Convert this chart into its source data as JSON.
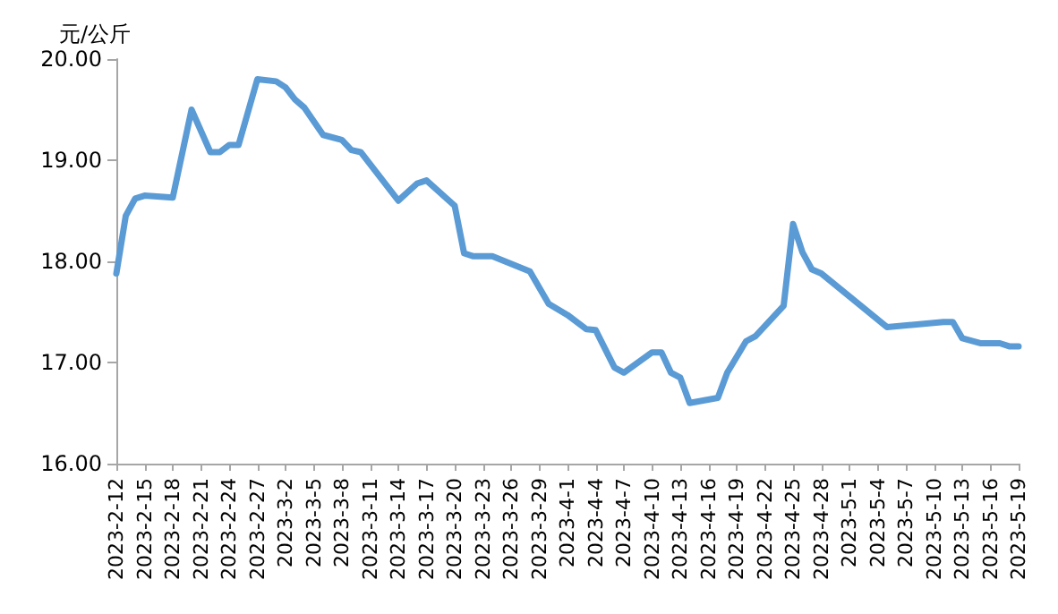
{
  "chart_data": {
    "type": "line",
    "ylabel": "元/公斤",
    "x": [
      "2023-02-12",
      "2023-02-13",
      "2023-02-14",
      "2023-02-15",
      "2023-02-18",
      "2023-02-20",
      "2023-02-22",
      "2023-02-23",
      "2023-02-24",
      "2023-02-25",
      "2023-02-27",
      "2023-03-01",
      "2023-03-02",
      "2023-03-03",
      "2023-03-04",
      "2023-03-06",
      "2023-03-08",
      "2023-03-09",
      "2023-03-10",
      "2023-03-14",
      "2023-03-16",
      "2023-03-17",
      "2023-03-20",
      "2023-03-21",
      "2023-03-22",
      "2023-03-24",
      "2023-03-28",
      "2023-03-30",
      "2023-04-01",
      "2023-04-03",
      "2023-04-04",
      "2023-04-06",
      "2023-04-07",
      "2023-04-10",
      "2023-04-11",
      "2023-04-12",
      "2023-04-13",
      "2023-04-14",
      "2023-04-17",
      "2023-04-18",
      "2023-04-20",
      "2023-04-21",
      "2023-04-24",
      "2023-04-25",
      "2023-04-26",
      "2023-04-27",
      "2023-04-28",
      "2023-05-05",
      "2023-05-11",
      "2023-05-12",
      "2023-05-13",
      "2023-05-15",
      "2023-05-17",
      "2023-05-18",
      "2023-05-19"
    ],
    "series": [
      {
        "color": "#5b9bd5",
        "values": [
          17.88,
          18.45,
          18.62,
          18.65,
          18.63,
          19.5,
          19.08,
          19.08,
          19.15,
          19.15,
          19.8,
          19.78,
          19.72,
          19.6,
          19.52,
          19.25,
          19.2,
          19.1,
          19.08,
          18.6,
          18.77,
          18.8,
          18.55,
          18.08,
          18.05,
          18.05,
          17.9,
          17.58,
          17.47,
          17.33,
          17.32,
          16.95,
          16.9,
          17.1,
          17.1,
          16.9,
          16.85,
          16.6,
          16.65,
          16.9,
          17.21,
          17.26,
          17.56,
          18.37,
          18.09,
          17.92,
          17.88,
          17.35,
          17.4,
          17.4,
          17.24,
          17.19,
          17.19,
          17.16,
          17.16
        ]
      }
    ],
    "xlim": [
      "2023-02-12",
      "2023-05-19"
    ],
    "xticks": [
      {
        "value": "2023-02-12",
        "label": "2023-2-12"
      },
      {
        "value": "2023-02-15",
        "label": "2023-2-15"
      },
      {
        "value": "2023-02-18",
        "label": "2023-2-18"
      },
      {
        "value": "2023-02-21",
        "label": "2023-2-21"
      },
      {
        "value": "2023-02-24",
        "label": "2023-2-24"
      },
      {
        "value": "2023-02-27",
        "label": "2023-2-27"
      },
      {
        "value": "2023-03-02",
        "label": "2023-3-2"
      },
      {
        "value": "2023-03-05",
        "label": "2023-3-5"
      },
      {
        "value": "2023-03-08",
        "label": "2023-3-8"
      },
      {
        "value": "2023-03-11",
        "label": "2023-3-11"
      },
      {
        "value": "2023-03-14",
        "label": "2023-3-14"
      },
      {
        "value": "2023-03-17",
        "label": "2023-3-17"
      },
      {
        "value": "2023-03-20",
        "label": "2023-3-20"
      },
      {
        "value": "2023-03-23",
        "label": "2023-3-23"
      },
      {
        "value": "2023-03-26",
        "label": "2023-3-26"
      },
      {
        "value": "2023-03-29",
        "label": "2023-3-29"
      },
      {
        "value": "2023-04-01",
        "label": "2023-4-1"
      },
      {
        "value": "2023-04-04",
        "label": "2023-4-4"
      },
      {
        "value": "2023-04-07",
        "label": "2023-4-7"
      },
      {
        "value": "2023-04-10",
        "label": "2023-4-10"
      },
      {
        "value": "2023-04-13",
        "label": "2023-4-13"
      },
      {
        "value": "2023-04-16",
        "label": "2023-4-16"
      },
      {
        "value": "2023-04-19",
        "label": "2023-4-19"
      },
      {
        "value": "2023-04-22",
        "label": "2023-4-22"
      },
      {
        "value": "2023-04-25",
        "label": "2023-4-25"
      },
      {
        "value": "2023-04-28",
        "label": "2023-4-28"
      },
      {
        "value": "2023-05-01",
        "label": "2023-5-1"
      },
      {
        "value": "2023-05-04",
        "label": "2023-5-4"
      },
      {
        "value": "2023-05-07",
        "label": "2023-5-7"
      },
      {
        "value": "2023-05-10",
        "label": "2023-5-10"
      },
      {
        "value": "2023-05-13",
        "label": "2023-5-13"
      },
      {
        "value": "2023-05-16",
        "label": "2023-5-16"
      },
      {
        "value": "2023-05-19",
        "label": "2023-5-19"
      }
    ],
    "ylim": [
      16,
      20
    ],
    "yticks": [
      {
        "value": 16,
        "label": "16.00"
      },
      {
        "value": 17,
        "label": "17.00"
      },
      {
        "value": 18,
        "label": "18.00"
      },
      {
        "value": 19,
        "label": "19.00"
      },
      {
        "value": 20,
        "label": "20.00"
      }
    ],
    "grid": false,
    "legend": false,
    "marker": "none",
    "line_style": "solid"
  }
}
